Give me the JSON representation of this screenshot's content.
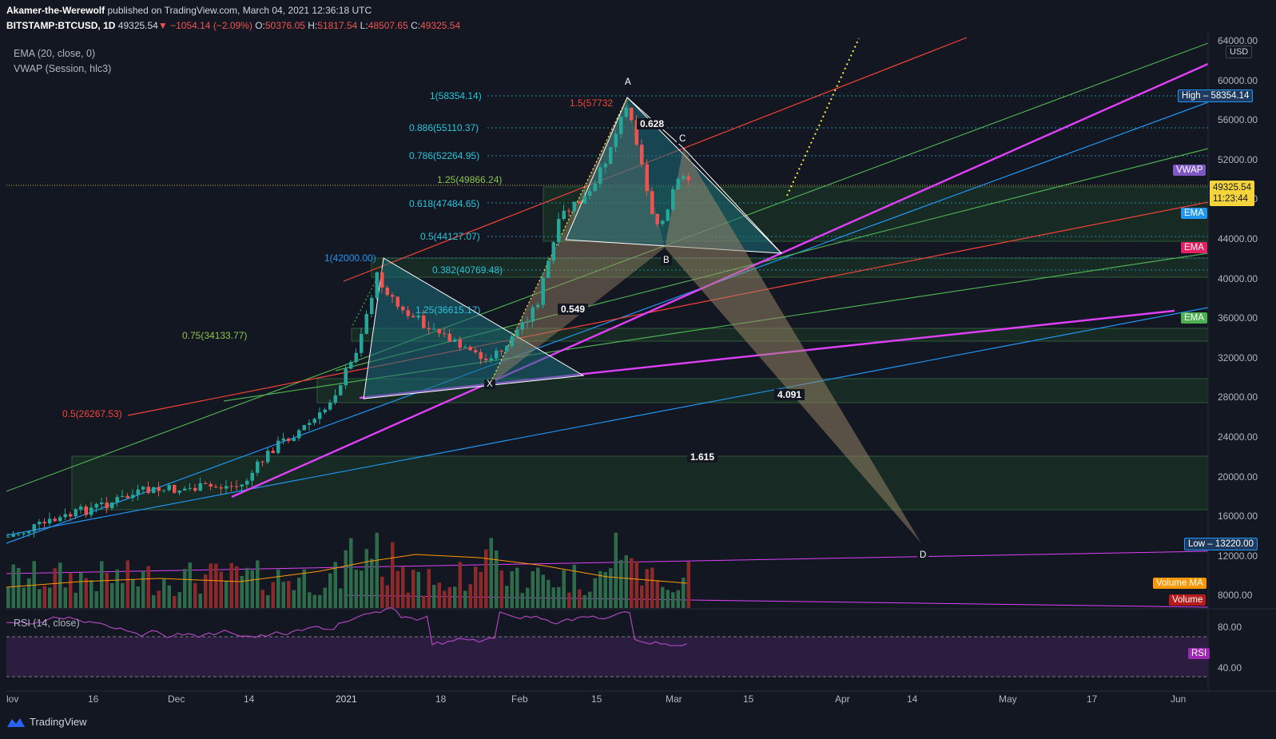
{
  "header": {
    "publisher": "Akamer-the-Werewolf",
    "published_text": "published on TradingView.com, March 04, 2021 12:36:18 UTC",
    "symbol": "BITSTAMP:BTCUSD, 1D",
    "last": "49325.54",
    "change": "−1054.14 (−2.09%)",
    "o_label": "O:",
    "o": "50376.05",
    "h_label": "H:",
    "h": "51817.54",
    "l_label": "L:",
    "l": "48507.65",
    "c_label": "C:",
    "c": "49325.54"
  },
  "indicators": {
    "ema": "EMA (20, close, 0)",
    "vwap": "VWAP (Session, hlc3)",
    "rsi": "RSI (14, close)"
  },
  "currency": "USD",
  "price_axis": [
    "64000.00",
    "60000.00",
    "56000.00",
    "52000.00",
    "48000.00",
    "44000.00",
    "40000.00",
    "36000.00",
    "32000.00",
    "28000.00",
    "24000.00",
    "20000.00",
    "16000.00",
    "12000.00",
    "8000.00"
  ],
  "rsi_axis": [
    "80.00",
    "40.00"
  ],
  "time_axis": [
    "lov",
    "16",
    "Dec",
    "14",
    "2021",
    "18",
    "Feb",
    "15",
    "Mar",
    "15",
    "Apr",
    "14",
    "May",
    "17",
    "Jun"
  ],
  "tags": {
    "high_label": "High",
    "high_value": "58354.14",
    "vwap": "VWAP",
    "last_price": "49325.54",
    "countdown": "11:23:44",
    "ema1": "EMA",
    "ema2": "EMA",
    "ema3": "EMA",
    "low_label": "Low",
    "low_value": "13220.00",
    "volume_ma": "Volume MA",
    "volume": "Volume",
    "rsi": "RSI"
  },
  "fib_labels": {
    "f1_top": "1(58354.14)",
    "f886": "0.886(55110.37)",
    "f786": "0.786(52264.95)",
    "f125": "1.25(49866.24)",
    "f618": "0.618(47484.65)",
    "f05": "0.5(44127.07)",
    "f1_42000": "1(42000.00)",
    "f382": "0.382(40769.48)",
    "f1_5": "1.5(57732",
    "f_mid": "1.25(36615.17)",
    "f075": "0.75(34133.77)",
    "f05_red": "0.5(26267.53)"
  },
  "pattern_points": {
    "x": "X",
    "a": "A",
    "b": "B",
    "c": "C",
    "d": "D"
  },
  "ratios": {
    "r0628": "0.628",
    "r0549": "0.549",
    "r4091": "4.091",
    "r1615": "1.615"
  },
  "footer_brand": "TradingView",
  "colors": {
    "bg": "#131722",
    "up": "#26a69a",
    "down": "#ef5350",
    "magenta": "#e040fb",
    "blue": "#2196f3",
    "green": "#4caf50",
    "red": "#f44336",
    "yellow": "#ffeb3b",
    "teal": "#26c6da"
  }
}
